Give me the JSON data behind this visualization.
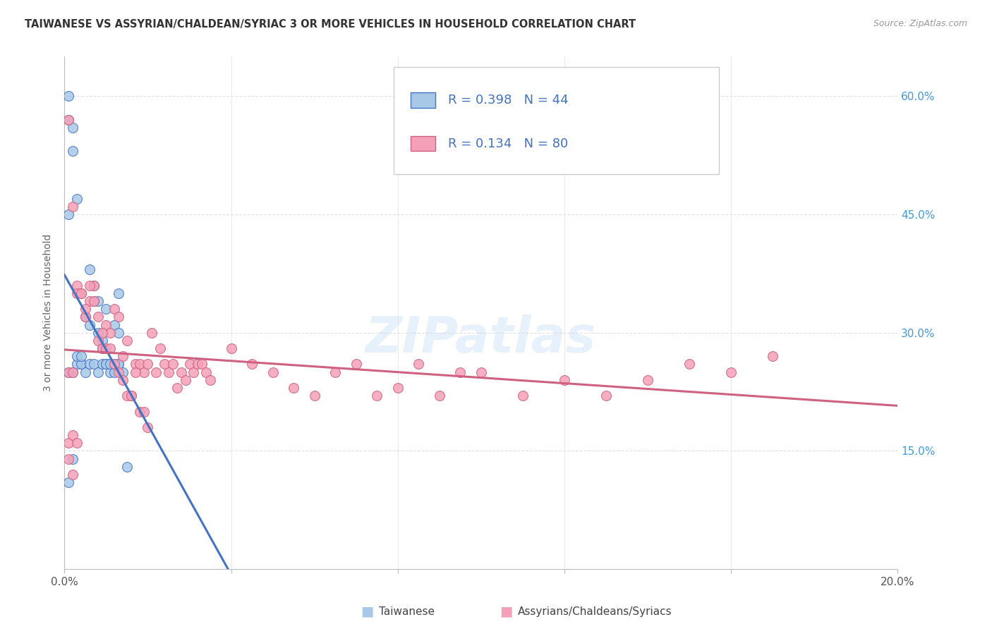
{
  "title": "TAIWANESE VS ASSYRIAN/CHALDEAN/SYRIAC 3 OR MORE VEHICLES IN HOUSEHOLD CORRELATION CHART",
  "source": "Source: ZipAtlas.com",
  "ylabel": "3 or more Vehicles in Household",
  "ytick_vals": [
    0,
    15,
    30,
    45,
    60
  ],
  "ytick_labels": [
    "",
    "15.0%",
    "30.0%",
    "45.0%",
    "60.0%"
  ],
  "xlim": [
    0,
    0.2
  ],
  "ylim": [
    0,
    65
  ],
  "watermark": "ZIPatlas",
  "legend_r1": "R = 0.398",
  "legend_n1": "N = 44",
  "legend_r2": "R = 0.134",
  "legend_n2": "N = 80",
  "legend_label1": "Taiwanese",
  "legend_label2": "Assyrians/Chaldeans/Syriacs",
  "color_blue_fill": "#a8c8e8",
  "color_blue_edge": "#4472c4",
  "color_pink_fill": "#f4a0b8",
  "color_pink_edge": "#d06080",
  "color_legend_text": "#4472c4",
  "title_color": "#333333",
  "source_color": "#999999",
  "axis_label_color": "#666666",
  "right_tick_color": "#4499dd",
  "grid_color": "#e0e0e0",
  "blue_x": [
    0.001,
    0.002,
    0.003,
    0.004,
    0.005,
    0.006,
    0.007,
    0.008,
    0.009,
    0.01,
    0.011,
    0.012,
    0.013,
    0.003,
    0.004,
    0.005,
    0.006,
    0.007,
    0.008,
    0.009,
    0.01,
    0.011,
    0.012,
    0.013,
    0.014,
    0.015,
    0.006,
    0.007,
    0.008,
    0.009,
    0.01,
    0.011,
    0.012,
    0.013,
    0.001,
    0.002,
    0.003,
    0.004,
    0.001,
    0.002,
    0.001,
    0.002,
    0.013,
    0.001
  ],
  "blue_y": [
    57,
    53,
    47,
    26,
    32,
    31,
    36,
    34,
    29,
    33,
    26,
    31,
    35,
    26,
    26,
    25,
    26,
    26,
    25,
    26,
    26,
    25,
    25,
    26,
    25,
    13,
    38,
    34,
    30,
    28,
    26,
    26,
    26,
    26,
    60,
    56,
    27,
    27,
    25,
    25,
    11,
    14,
    30,
    45
  ],
  "pink_x": [
    0.001,
    0.002,
    0.003,
    0.004,
    0.005,
    0.006,
    0.007,
    0.008,
    0.009,
    0.01,
    0.011,
    0.012,
    0.013,
    0.014,
    0.015,
    0.016,
    0.017,
    0.018,
    0.019,
    0.02,
    0.021,
    0.022,
    0.023,
    0.024,
    0.025,
    0.026,
    0.027,
    0.028,
    0.029,
    0.03,
    0.031,
    0.032,
    0.033,
    0.034,
    0.035,
    0.04,
    0.045,
    0.05,
    0.055,
    0.06,
    0.065,
    0.07,
    0.075,
    0.08,
    0.085,
    0.09,
    0.095,
    0.1,
    0.11,
    0.12,
    0.13,
    0.14,
    0.15,
    0.16,
    0.003,
    0.004,
    0.005,
    0.006,
    0.007,
    0.008,
    0.009,
    0.01,
    0.011,
    0.012,
    0.013,
    0.014,
    0.015,
    0.016,
    0.017,
    0.018,
    0.019,
    0.02,
    0.001,
    0.002,
    0.001,
    0.002,
    0.17,
    0.001,
    0.002,
    0.003
  ],
  "pink_y": [
    25,
    25,
    36,
    35,
    32,
    34,
    36,
    29,
    28,
    31,
    30,
    33,
    32,
    27,
    29,
    22,
    26,
    26,
    25,
    26,
    30,
    25,
    28,
    26,
    25,
    26,
    23,
    25,
    24,
    26,
    25,
    26,
    26,
    25,
    24,
    28,
    26,
    25,
    23,
    22,
    25,
    26,
    22,
    23,
    26,
    22,
    25,
    25,
    22,
    24,
    22,
    24,
    26,
    25,
    35,
    35,
    33,
    36,
    34,
    32,
    30,
    28,
    28,
    26,
    25,
    24,
    22,
    22,
    25,
    20,
    20,
    18,
    57,
    46,
    14,
    12,
    27,
    16,
    17,
    16
  ]
}
